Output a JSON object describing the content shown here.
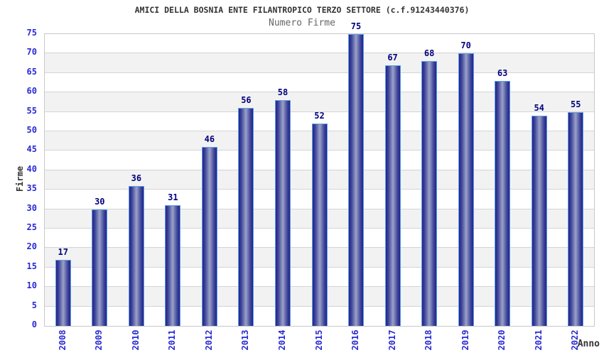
{
  "chart_data": {
    "type": "bar",
    "title": "AMICI DELLA BOSNIA ENTE FILANTROPICO TERZO SETTORE (c.f.91243440376)",
    "subtitle": "Numero Firme",
    "xlabel": "Anno",
    "ylabel": "Firme",
    "categories": [
      "2008",
      "2009",
      "2010",
      "2011",
      "2012",
      "2013",
      "2014",
      "2015",
      "2016",
      "2017",
      "2018",
      "2019",
      "2020",
      "2021",
      "2022"
    ],
    "values": [
      17,
      30,
      36,
      31,
      46,
      56,
      58,
      52,
      75,
      67,
      68,
      70,
      63,
      54,
      55
    ],
    "ylim": [
      0,
      75
    ],
    "ytick_step": 5,
    "grid": "horizontal-bands-alternating",
    "legend": "none",
    "bar_value_labels": true,
    "x_tick_rotation_deg": 90
  },
  "colors": {
    "title": "#333333",
    "subtitle": "#666666",
    "axis_tick": "#2a2ad4",
    "value_label": "#00007e",
    "bar_dark": "#23238b",
    "bar_mid": "#3f4499",
    "bar_light": "#9aa2c8",
    "bar_border": "#5aa0e8",
    "band_alt": "#f2f2f2",
    "grid_line": "#d4d4d4",
    "plot_border": "#c8c8c8"
  }
}
